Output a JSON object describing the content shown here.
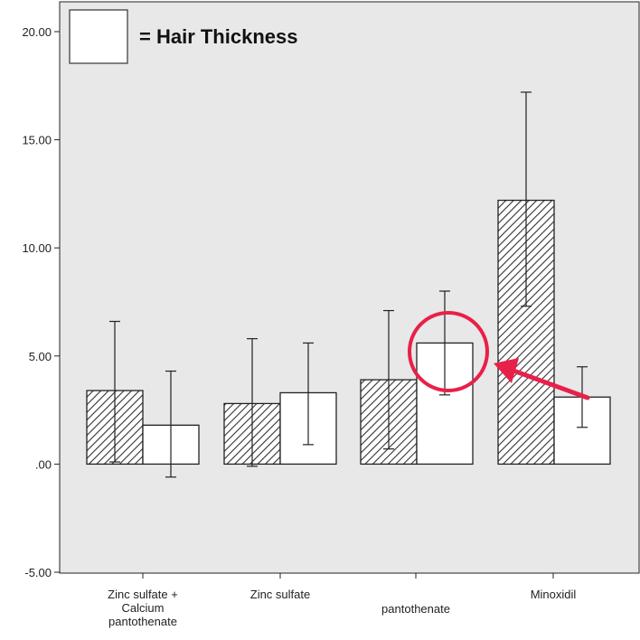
{
  "chart_data": {
    "type": "bar",
    "title": "",
    "xlabel": "",
    "ylabel": "",
    "ylim": [
      -5,
      20
    ],
    "yticks": [
      "20.00",
      "15.00",
      "10.00",
      "5.00",
      ".00",
      "-5.00"
    ],
    "ytick_values": [
      20,
      15,
      10,
      5,
      0,
      -5
    ],
    "categories": [
      [
        "Zinc sulfate +",
        "Calcium",
        "pantothenate"
      ],
      [
        "Zinc sulfate"
      ],
      [
        "pantothenate"
      ],
      [
        "Minoxidil"
      ]
    ],
    "series": [
      {
        "name": "",
        "style": "hatched",
        "values": [
          3.4,
          2.8,
          3.9,
          12.2
        ],
        "err_low": [
          0.1,
          -0.1,
          0.7,
          7.3
        ],
        "err_high": [
          6.6,
          5.8,
          7.1,
          17.2
        ]
      },
      {
        "name": "Hair Thickness",
        "style": "white",
        "values": [
          1.8,
          3.3,
          5.6,
          3.1
        ],
        "err_low": [
          -0.6,
          0.9,
          3.2,
          1.7
        ],
        "err_high": [
          4.3,
          5.6,
          8.0,
          4.5
        ]
      }
    ],
    "legend": {
      "label": "= Hair Thickness",
      "placement": "top-left"
    },
    "annotation": {
      "type": "circle-and-arrow",
      "target": "pantothenate / Hair Thickness bar",
      "color": "#e8204a"
    },
    "grid": false,
    "colors": {
      "plot_bg": "#e8e8e8",
      "bar_outline": "#222222",
      "hatch": "#333333",
      "annotation": "#e8204a"
    }
  }
}
